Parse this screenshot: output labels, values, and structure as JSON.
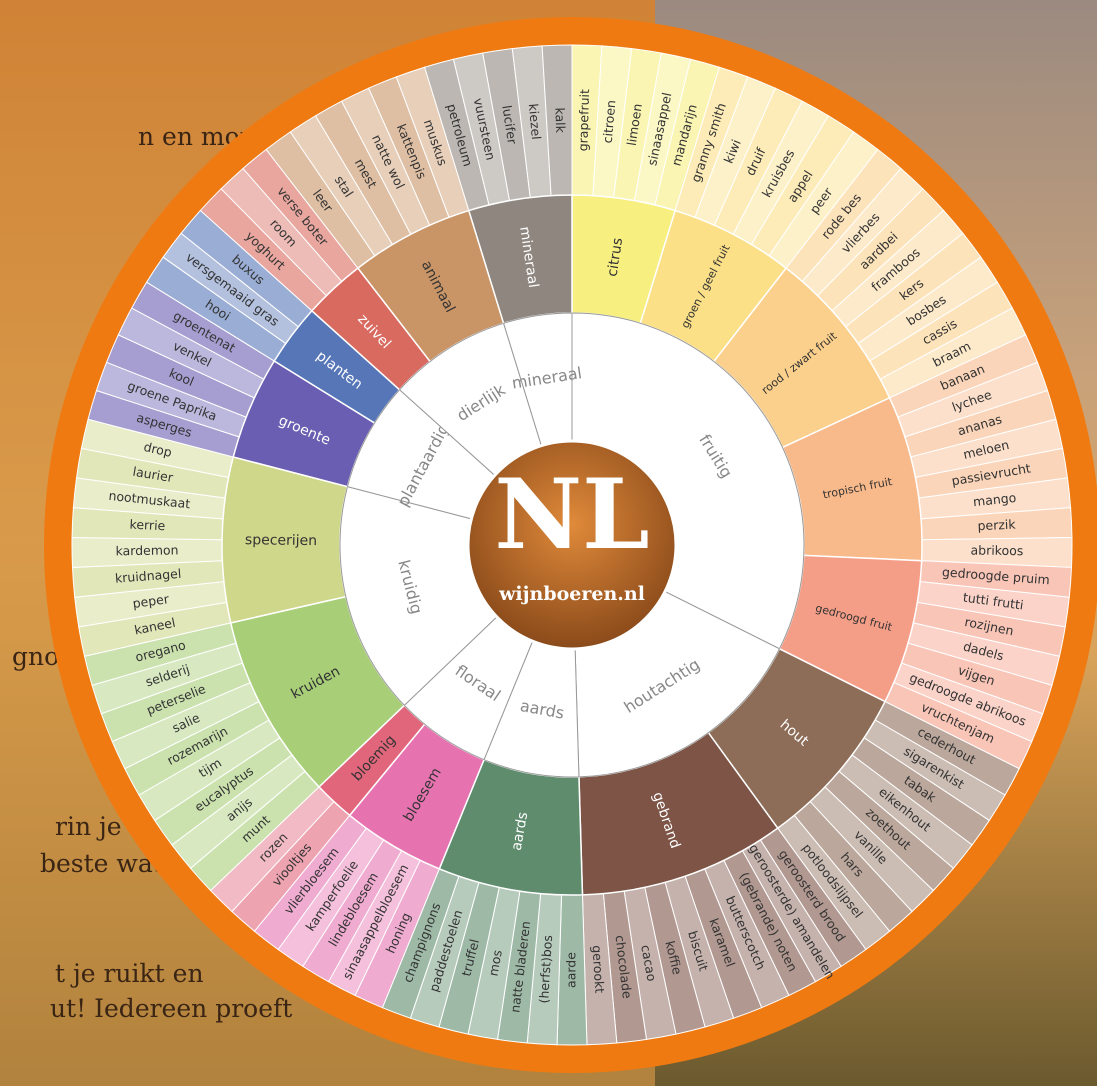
{
  "background_text": [
    "n en mond.",
    "gnon",
    "rin je",
    "beste wat je",
    "t je ruikt en",
    "ut! Iedereen proeft"
  ],
  "logo": {
    "title": "NL",
    "url": "wijnboeren.nl"
  },
  "categories": [
    {
      "label": "fruitig",
      "groups": [
        {
          "label": "citrus",
          "color": "#f7ef80",
          "descriptors": [
            "grapefruit",
            "citroen",
            "limoen",
            "sinaasappel",
            "mandarijn"
          ]
        },
        {
          "label": "groen / geel fruit",
          "color": "#fbe087",
          "descriptors": [
            "granny smith",
            "kiwi",
            "druif",
            "kruisbes",
            "appel",
            "peer"
          ]
        },
        {
          "label": "rood / zwart fruit",
          "color": "#fbd08c",
          "descriptors": [
            "rode bes",
            "vlierbes",
            "aardbei",
            "framboos",
            "kers",
            "bosbes",
            "cassis",
            "braam"
          ]
        },
        {
          "label": "tropisch fruit",
          "color": "#f8b98b",
          "descriptors": [
            "banaan",
            "lychee",
            "ananas",
            "meloen",
            "passievrucht",
            "mango",
            "perzik",
            "abrikoos"
          ]
        },
        {
          "label": "gedroogd fruit",
          "color": "#f59e87",
          "descriptors": [
            "gedroogde pruim",
            "tutti frutti",
            "rozijnen",
            "dadels",
            "vijgen",
            "gedroogde abrikoos",
            "vruchtenjam"
          ]
        }
      ]
    },
    {
      "label": "houtachtig",
      "groups": [
        {
          "label": "hout",
          "color": "#8e6d58",
          "descriptors": [
            "cederhout",
            "sigarenkist",
            "tabak",
            "eikenhout",
            "zoethout",
            "vanille",
            "hars",
            "potloodslijpsel"
          ]
        },
        {
          "label": "gebrand",
          "color": "#7d5446",
          "descriptors": [
            "geroosterd brood",
            "(geroosterde) amandelen",
            "(gebrande) noten",
            "butterscotch",
            "karamel",
            "biscuit",
            "koffie",
            "cacao",
            "chocolade",
            "gerookt"
          ]
        }
      ]
    },
    {
      "label": "aards",
      "groups": [
        {
          "label": "aards",
          "color": "#5e8c6d",
          "descriptors": [
            "aarde",
            "(herfst)bos",
            "natte bladeren",
            "mos",
            "truffel",
            "paddestoelen",
            "champignons"
          ]
        }
      ]
    },
    {
      "label": "floraal",
      "groups": [
        {
          "label": "bloesem",
          "color": "#e673b0",
          "descriptors": [
            "honing",
            "sinaasappelbloesem",
            "lindebloesem",
            "kamperfoelie",
            "vlierbloesem"
          ]
        },
        {
          "label": "bloemig",
          "color": "#e2667b",
          "descriptors": [
            "viooltjes",
            "rozen"
          ]
        }
      ]
    },
    {
      "label": "kruidig",
      "groups": [
        {
          "label": "kruiden",
          "color": "#a8ce78",
          "descriptors": [
            "munt",
            "anijs",
            "eucalyptus",
            "tijm",
            "rozemarijn",
            "salie",
            "peterselie",
            "selderij",
            "oregano"
          ]
        },
        {
          "label": "specerijen",
          "color": "#cfd78a",
          "descriptors": [
            "kaneel",
            "peper",
            "kruidnagel",
            "kardemon",
            "kerrie",
            "nootmuskaat",
            "laurier",
            "drop"
          ]
        }
      ]
    },
    {
      "label": "plantaardig",
      "groups": [
        {
          "label": "groente",
          "color": "#6a5eb2",
          "descriptors": [
            "asperges",
            "groene Paprika",
            "kool",
            "venkel",
            "groentenat"
          ]
        },
        {
          "label": "planten",
          "color": "#5676b7",
          "descriptors": [
            "hooi",
            "versgemaaid gras",
            "buxus"
          ]
        }
      ]
    },
    {
      "label": "dierlijk",
      "groups": [
        {
          "label": "zuivel",
          "color": "#d96a5f",
          "descriptors": [
            "yoghurt",
            "room",
            "verse boter"
          ]
        },
        {
          "label": "animaal",
          "color": "#c99466",
          "descriptors": [
            "leer",
            "stal",
            "mest",
            "natte wol",
            "kattenpis",
            "muskus"
          ]
        }
      ]
    },
    {
      "label": "mineraal",
      "groups": [
        {
          "label": "mineraal",
          "color": "#8f877f",
          "descriptors": [
            "petroleum",
            "vuursteen",
            "lucifer",
            "kiezel",
            "kalk"
          ]
        }
      ]
    }
  ]
}
